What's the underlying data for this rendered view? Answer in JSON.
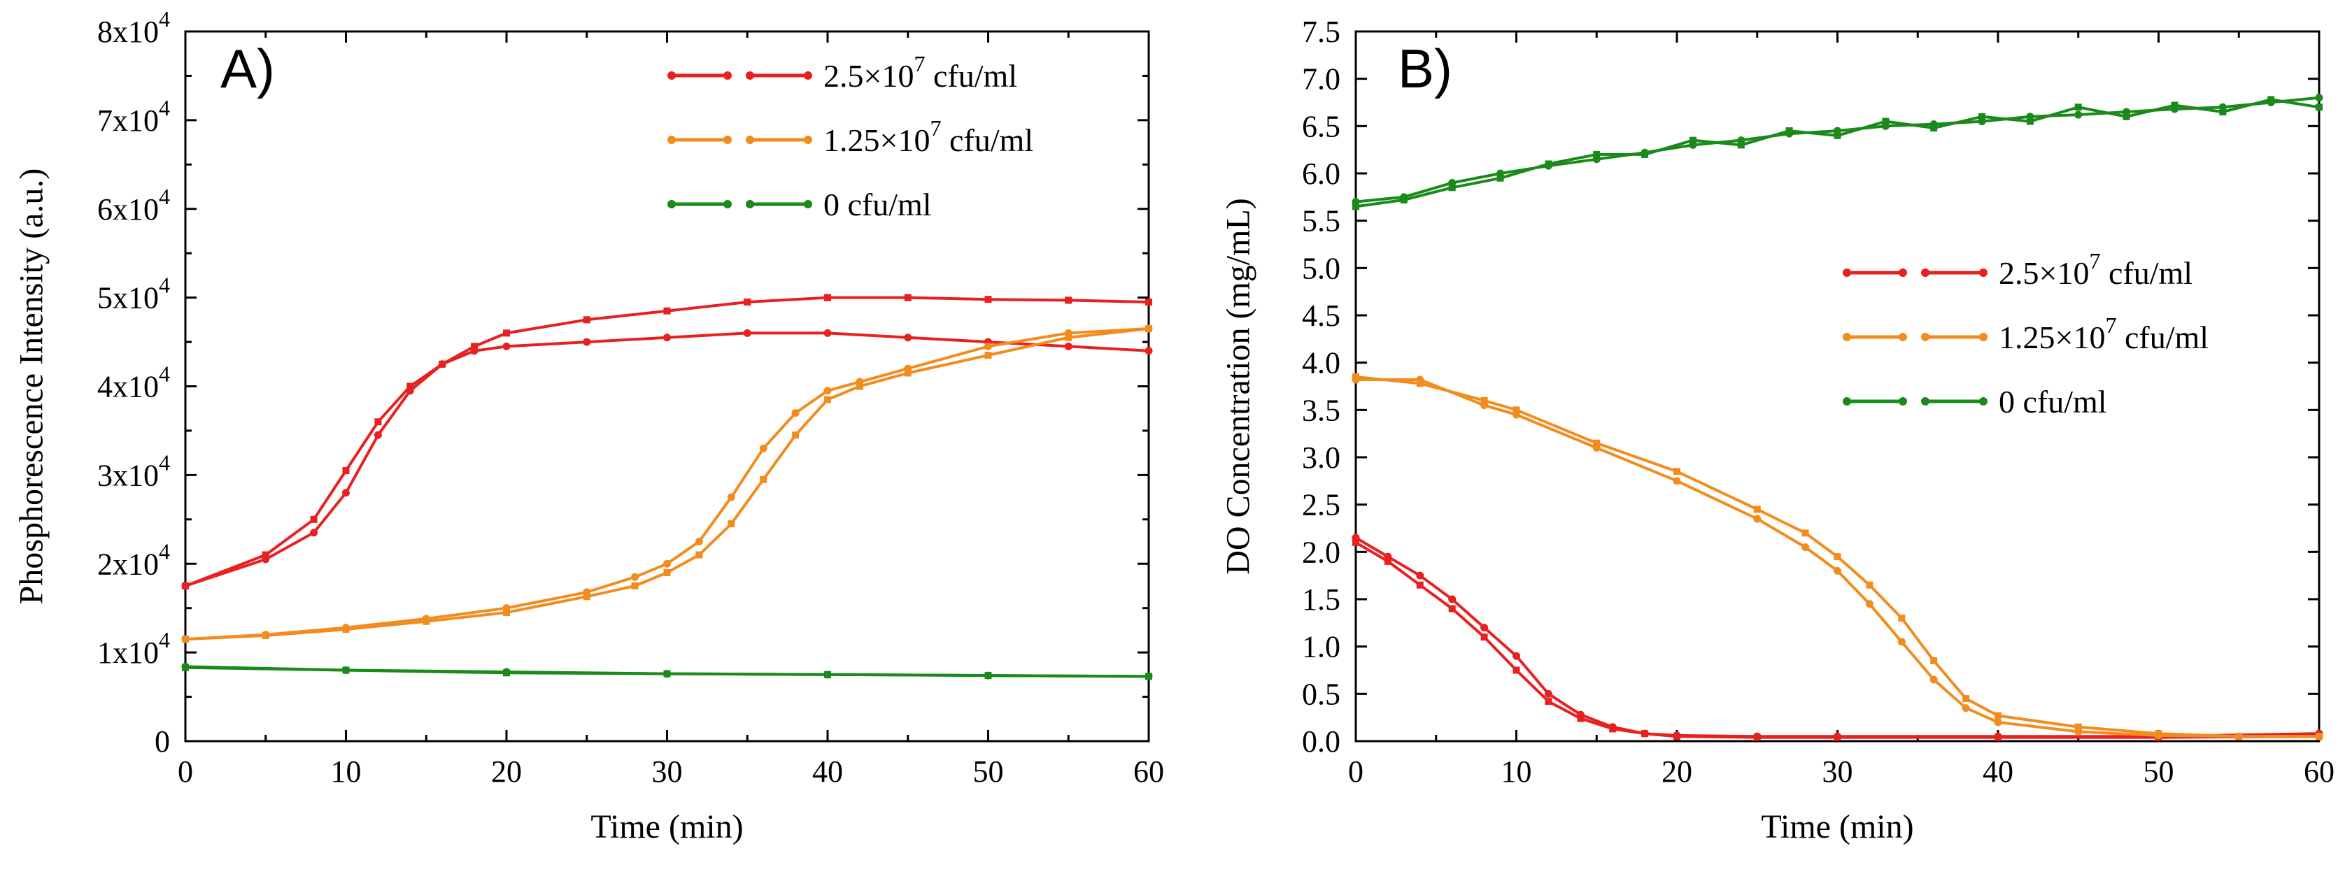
{
  "chart_data": [
    {
      "type": "line",
      "panel_label": "A)",
      "xlabel": "Time (min)",
      "ylabel": "Phosphorescence Intensity (a.u.)",
      "xlim": [
        0,
        60
      ],
      "ylim": [
        0,
        80000
      ],
      "xticks": [
        0,
        10,
        20,
        30,
        40,
        50,
        60
      ],
      "xtick_labels": [
        "0",
        "10",
        "20",
        "30",
        "40",
        "50",
        "60"
      ],
      "yticks": [
        0,
        10000,
        20000,
        30000,
        40000,
        50000,
        60000,
        70000,
        80000
      ],
      "ytick_labels": [
        {
          "base": "0",
          "exp": ""
        },
        {
          "base": "1x10",
          "exp": "4"
        },
        {
          "base": "2x10",
          "exp": "4"
        },
        {
          "base": "3x10",
          "exp": "4"
        },
        {
          "base": "4x10",
          "exp": "4"
        },
        {
          "base": "5x10",
          "exp": "4"
        },
        {
          "base": "6x10",
          "exp": "4"
        },
        {
          "base": "7x10",
          "exp": "4"
        },
        {
          "base": "8x10",
          "exp": "4"
        }
      ],
      "legend_position": "top-right",
      "series": [
        {
          "name": "2.5×10^7 cfu/ml",
          "label_base": "2.5×10",
          "label_exp": "7",
          "label_tail": " cfu/ml",
          "color": "#e8201f",
          "x": [
            0,
            5,
            8,
            10,
            12,
            14,
            16,
            18,
            20,
            25,
            30,
            35,
            40,
            45,
            50,
            55,
            60
          ],
          "y": [
            17500,
            20500,
            23500,
            28000,
            34500,
            39500,
            42500,
            44000,
            44500,
            45000,
            45500,
            46000,
            46000,
            45500,
            45000,
            44500,
            44000
          ]
        },
        {
          "name": "2.5×10^7 cfu/ml replicate",
          "color": "#e8201f",
          "replicate": true,
          "x": [
            0,
            5,
            8,
            10,
            12,
            14,
            16,
            18,
            20,
            25,
            30,
            35,
            40,
            45,
            50,
            55,
            60
          ],
          "y": [
            17500,
            21000,
            25000,
            30500,
            36000,
            40000,
            42500,
            44500,
            46000,
            47500,
            48500,
            49500,
            50000,
            50000,
            49800,
            49700,
            49500
          ]
        },
        {
          "name": "1.25×10^7 cfu/ml",
          "label_base": "1.25×10",
          "label_exp": "7",
          "label_tail": " cfu/ml",
          "color": "#f28c1e",
          "x": [
            0,
            5,
            10,
            15,
            20,
            25,
            28,
            30,
            32,
            34,
            36,
            38,
            40,
            42,
            45,
            50,
            55,
            60
          ],
          "y": [
            11500,
            12000,
            12800,
            13800,
            15000,
            16800,
            18500,
            20000,
            22500,
            27500,
            33000,
            37000,
            39500,
            40500,
            42000,
            44500,
            46000,
            46500
          ]
        },
        {
          "name": "1.25×10^7 cfu/ml replicate",
          "color": "#f28c1e",
          "replicate": true,
          "x": [
            0,
            5,
            10,
            15,
            20,
            25,
            28,
            30,
            32,
            34,
            36,
            38,
            40,
            42,
            45,
            50,
            55,
            60
          ],
          "y": [
            11500,
            11900,
            12600,
            13500,
            14500,
            16300,
            17500,
            19000,
            21000,
            24500,
            29500,
            34500,
            38500,
            40000,
            41500,
            43500,
            45500,
            46500
          ]
        },
        {
          "name": "0 cfu/ml",
          "label_base": "0 cfu/ml",
          "label_exp": "",
          "label_tail": "",
          "color": "#1a8a1a",
          "x": [
            0,
            10,
            20,
            30,
            40,
            50,
            60
          ],
          "y": [
            8400,
            8000,
            7800,
            7600,
            7500,
            7400,
            7300
          ]
        },
        {
          "name": "0 cfu/ml replicate",
          "color": "#1a8a1a",
          "replicate": true,
          "x": [
            0,
            10,
            20,
            30,
            40,
            50,
            60
          ],
          "y": [
            8300,
            8000,
            7700,
            7600,
            7500,
            7400,
            7300
          ]
        }
      ]
    },
    {
      "type": "line",
      "panel_label": "B)",
      "xlabel": "Time (min)",
      "ylabel": "DO Concentration (mg/mL)",
      "xlim": [
        0,
        60
      ],
      "ylim": [
        0,
        7.5
      ],
      "xticks": [
        0,
        10,
        20,
        30,
        40,
        50,
        60
      ],
      "xtick_labels": [
        "0",
        "10",
        "20",
        "30",
        "40",
        "50",
        "60"
      ],
      "yticks": [
        0,
        0.5,
        1,
        1.5,
        2,
        2.5,
        3,
        3.5,
        4,
        4.5,
        5,
        5.5,
        6,
        6.5,
        7,
        7.5
      ],
      "ytick_labels": [
        "0.0",
        "0.5",
        "1.0",
        "1.5",
        "2.0",
        "2.5",
        "3.0",
        "3.5",
        "4.0",
        "4.5",
        "5.0",
        "5.5",
        "6.0",
        "6.5",
        "7.0",
        "7.5"
      ],
      "legend_position": "middle-right",
      "series": [
        {
          "name": "2.5×10^7 cfu/ml",
          "label_base": "2.5×10",
          "label_exp": "7",
          "label_tail": " cfu/ml",
          "color": "#e8201f",
          "x": [
            0,
            2,
            4,
            6,
            8,
            10,
            12,
            14,
            16,
            18,
            20,
            25,
            30,
            40,
            50,
            60
          ],
          "y": [
            2.15,
            1.95,
            1.75,
            1.5,
            1.2,
            0.9,
            0.5,
            0.28,
            0.15,
            0.08,
            0.06,
            0.05,
            0.05,
            0.05,
            0.05,
            0.08
          ]
        },
        {
          "name": "2.5×10^7 cfu/ml replicate",
          "color": "#e8201f",
          "replicate": true,
          "x": [
            0,
            2,
            4,
            6,
            8,
            10,
            12,
            14,
            16,
            18,
            20,
            25,
            30,
            40,
            50,
            60
          ],
          "y": [
            2.1,
            1.9,
            1.65,
            1.4,
            1.1,
            0.75,
            0.42,
            0.24,
            0.13,
            0.08,
            0.05,
            0.04,
            0.04,
            0.04,
            0.04,
            0.05
          ]
        },
        {
          "name": "1.25×10^7 cfu/ml",
          "label_base": "1.25×10",
          "label_exp": "7",
          "label_tail": " cfu/ml",
          "color": "#f28c1e",
          "x": [
            0,
            4,
            8,
            10,
            15,
            20,
            25,
            28,
            30,
            32,
            34,
            36,
            38,
            40,
            45,
            50,
            55,
            60
          ],
          "y": [
            3.82,
            3.82,
            3.55,
            3.45,
            3.1,
            2.75,
            2.35,
            2.05,
            1.8,
            1.45,
            1.05,
            0.65,
            0.35,
            0.2,
            0.1,
            0.06,
            0.05,
            0.05
          ]
        },
        {
          "name": "1.25×10^7 cfu/ml replicate",
          "color": "#f28c1e",
          "replicate": true,
          "x": [
            0,
            4,
            8,
            10,
            15,
            20,
            25,
            28,
            30,
            32,
            34,
            36,
            38,
            40,
            45,
            50,
            55,
            60
          ],
          "y": [
            3.85,
            3.78,
            3.6,
            3.5,
            3.15,
            2.85,
            2.45,
            2.2,
            1.95,
            1.65,
            1.3,
            0.85,
            0.45,
            0.27,
            0.15,
            0.08,
            0.05,
            0.05
          ]
        },
        {
          "name": "0 cfu/ml",
          "label_base": "0 cfu/ml",
          "label_exp": "",
          "label_tail": "",
          "color": "#1a8a1a",
          "x": [
            0,
            3,
            6,
            9,
            12,
            15,
            18,
            21,
            24,
            27,
            30,
            33,
            36,
            39,
            42,
            45,
            48,
            51,
            54,
            57,
            60
          ],
          "y": [
            5.7,
            5.75,
            5.9,
            6.0,
            6.08,
            6.15,
            6.22,
            6.3,
            6.35,
            6.42,
            6.45,
            6.5,
            6.52,
            6.55,
            6.6,
            6.62,
            6.65,
            6.68,
            6.7,
            6.75,
            6.8
          ]
        },
        {
          "name": "0 cfu/ml replicate",
          "color": "#1a8a1a",
          "replicate": true,
          "x": [
            0,
            3,
            6,
            9,
            12,
            15,
            18,
            21,
            24,
            27,
            30,
            33,
            36,
            39,
            42,
            45,
            48,
            51,
            54,
            57,
            60
          ],
          "y": [
            5.65,
            5.72,
            5.85,
            5.95,
            6.1,
            6.2,
            6.2,
            6.35,
            6.3,
            6.45,
            6.4,
            6.55,
            6.48,
            6.6,
            6.55,
            6.7,
            6.6,
            6.72,
            6.65,
            6.78,
            6.7
          ]
        }
      ]
    }
  ]
}
